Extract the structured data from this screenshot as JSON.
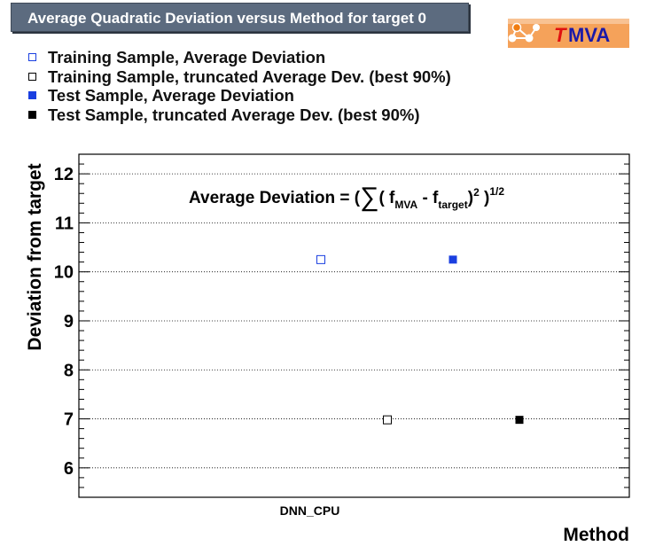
{
  "header": {
    "title": "Average Quadratic Deviation versus Method for target 0",
    "logo_text": "TMVA"
  },
  "legend": {
    "items": [
      {
        "label": "Training Sample, Average Deviation",
        "marker": "open-square",
        "color": "#1a3fe0"
      },
      {
        "label": "Training Sample, truncated Average Dev. (best 90%)",
        "marker": "open-square",
        "color": "#000000"
      },
      {
        "label": "Test Sample, Average Deviation",
        "marker": "filled-square",
        "color": "#1a3fe0"
      },
      {
        "label": "Test Sample, truncated Average Dev. (best 90%)",
        "marker": "filled-square",
        "color": "#000000"
      }
    ]
  },
  "formula": {
    "lhs": "Average Deviation = (",
    "sum": "∑",
    "open": "( f",
    "sub1": "MVA",
    "minus": " - f",
    "sub2": "target",
    "close": ")",
    "sup1": "2",
    "close2": " )",
    "sup2": "1/2"
  },
  "chart_data": {
    "type": "scatter",
    "title": "Average Quadratic Deviation versus Method for target 0",
    "xlabel": "Method",
    "ylabel": "Deviation from target",
    "categories": [
      "DNN_CPU"
    ],
    "ylim": [
      5.4,
      12.4
    ],
    "yticks": [
      6,
      7,
      8,
      9,
      10,
      11,
      12
    ],
    "grid": true,
    "legend_position": "top-left",
    "series": [
      {
        "name": "Training Sample, Average Deviation",
        "category": "DNN_CPU",
        "value": 10.25,
        "marker": "open-square",
        "color": "#1a3fe0"
      },
      {
        "name": "Training Sample, truncated Average Dev. (best 90%)",
        "category": "DNN_CPU",
        "value": 6.98,
        "marker": "open-square",
        "color": "#000000"
      },
      {
        "name": "Test Sample, Average Deviation",
        "category": "DNN_CPU",
        "value": 10.25,
        "marker": "filled-square",
        "color": "#1a3fe0"
      },
      {
        "name": "Test Sample, truncated Average Dev. (best 90%)",
        "category": "DNN_CPU",
        "value": 6.98,
        "marker": "filled-square",
        "color": "#000000"
      }
    ]
  }
}
